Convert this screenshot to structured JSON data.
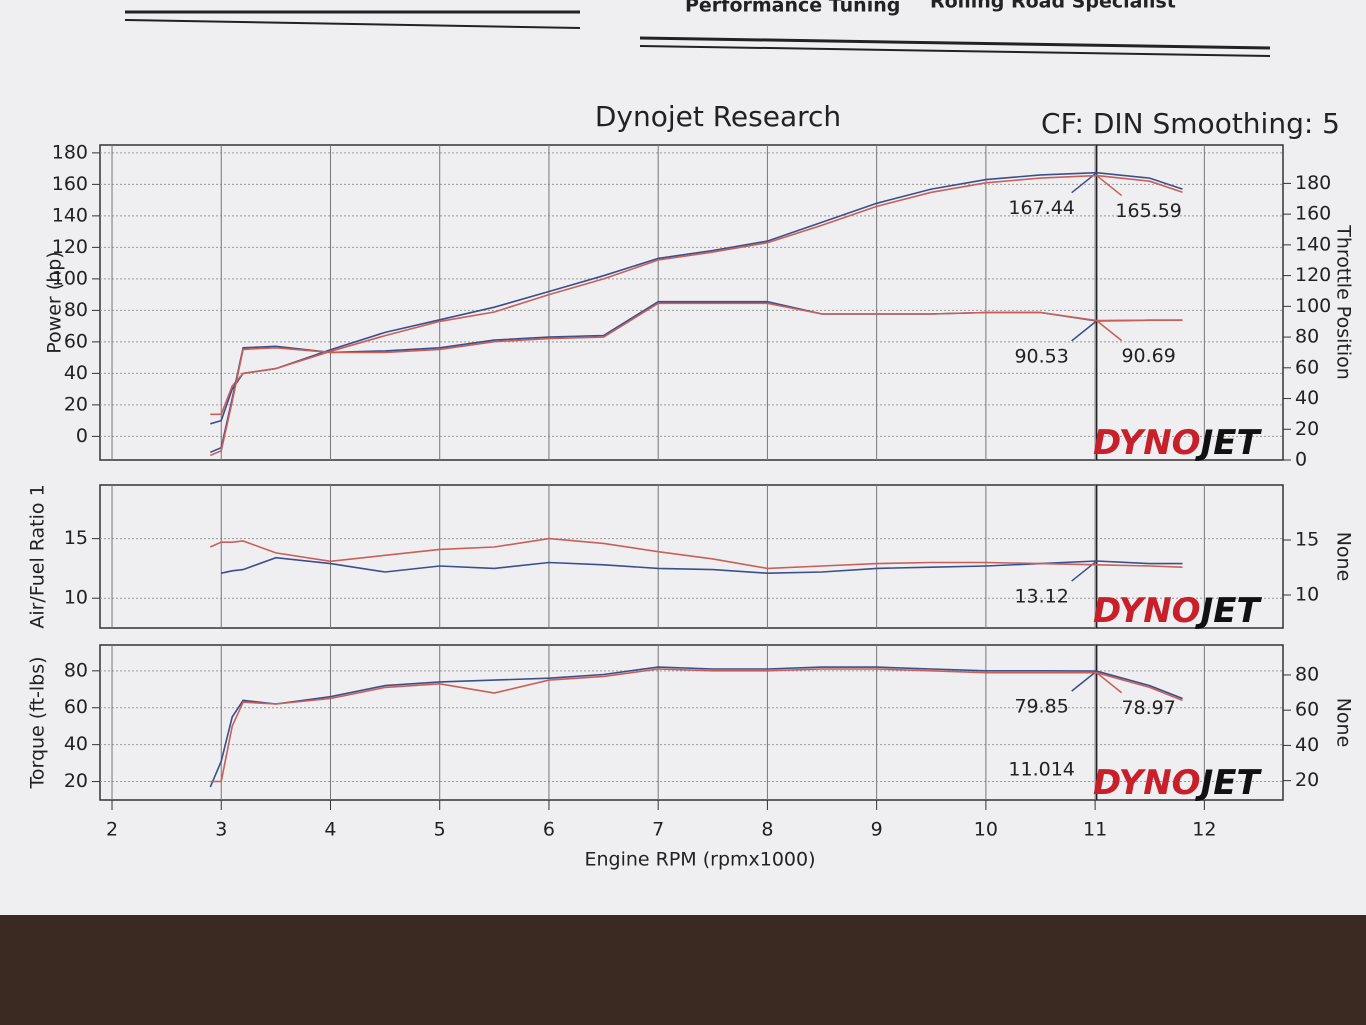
{
  "header": {
    "left": "Performance Tuning",
    "right": "Rolling Road Specialist"
  },
  "logo": [
    "DYNO",
    "JET"
  ],
  "chart_data": [
    {
      "type": "line",
      "title": "Dynojet Research",
      "subtitle": "CF: DIN Smoothing: 5",
      "ylabel": "Power (hp)",
      "y2label": "Throttle Position",
      "ylim": [
        -15,
        185
      ],
      "yticks": [
        0,
        20,
        40,
        60,
        80,
        100,
        120,
        140,
        160,
        180
      ],
      "y2lim": [
        0,
        205
      ],
      "y2ticks": [
        0,
        20,
        40,
        60,
        80,
        100,
        120,
        140,
        160,
        180
      ],
      "grid": true,
      "x": [
        2.9,
        3.0,
        3.1,
        3.2,
        3.5,
        4,
        4.5,
        5,
        5.5,
        6,
        6.5,
        7,
        7.5,
        8,
        8.5,
        9,
        9.5,
        10,
        10.5,
        11.014,
        11.5,
        11.8
      ],
      "series": [
        {
          "color": "#3b4f8c",
          "axis": "y",
          "cursor_label": true,
          "values": [
            8,
            10,
            30,
            40,
            43,
            55,
            66,
            74,
            82,
            92,
            102,
            113,
            118,
            124,
            136,
            148,
            157,
            163,
            166,
            167.44,
            164,
            157
          ]
        },
        {
          "color": "#c8605a",
          "axis": "y",
          "cursor_label": true,
          "values": [
            14,
            14,
            32,
            40,
            43,
            54,
            64,
            73,
            79,
            90,
            100,
            112,
            117,
            123,
            134,
            146,
            155,
            161,
            164,
            165.59,
            162,
            155
          ]
        },
        {
          "color": "#3b4f8c",
          "axis": "y2",
          "cursor_label": true,
          "values": [
            5,
            8,
            40,
            73,
            74,
            70,
            71,
            73,
            78,
            80,
            81,
            103,
            103,
            103,
            95,
            95,
            95,
            96,
            96,
            90.53,
            91,
            91
          ]
        },
        {
          "color": "#c8605a",
          "axis": "y2",
          "cursor_label": true,
          "values": [
            3,
            6,
            38,
            72,
            73,
            70,
            70,
            72,
            77,
            79,
            80,
            102,
            102,
            102,
            95,
            95,
            95,
            96,
            96,
            90.69,
            91,
            91
          ]
        }
      ]
    },
    {
      "type": "line",
      "ylabel": "Air/Fuel Ratio 1",
      "y2label": "None",
      "ylim": [
        7.5,
        19.5
      ],
      "yticks": [
        10,
        15
      ],
      "y2lim": [
        7,
        20
      ],
      "y2ticks": [
        10,
        15
      ],
      "grid": true,
      "x": [
        2.9,
        3.0,
        3.1,
        3.2,
        3.5,
        4,
        4.5,
        5,
        5.5,
        6,
        6.5,
        7,
        7.5,
        8,
        8.5,
        9,
        9.5,
        10,
        10.5,
        11.014,
        11.5,
        11.8
      ],
      "series": [
        {
          "color": "#3b4f8c",
          "axis": "y",
          "cursor_label": true,
          "values": [
            null,
            12.1,
            12.3,
            12.4,
            13.4,
            12.9,
            12.2,
            12.7,
            12.5,
            13.0,
            12.8,
            12.5,
            12.4,
            12.1,
            12.2,
            12.5,
            12.6,
            12.7,
            12.9,
            13.12,
            12.9,
            12.9
          ]
        },
        {
          "color": "#c8605a",
          "axis": "y",
          "cursor_label": false,
          "values": [
            14.3,
            14.7,
            14.7,
            14.8,
            13.8,
            13.1,
            13.6,
            14.1,
            14.3,
            15.0,
            14.6,
            13.9,
            13.3,
            12.5,
            12.7,
            12.9,
            13.0,
            13.0,
            12.9,
            12.8,
            12.7,
            12.6
          ]
        }
      ]
    },
    {
      "type": "line",
      "ylabel": "Torque (ft-lbs)",
      "y2label": "None",
      "xlabel": "Engine RPM (rpmx1000)",
      "xlim": [
        1.89,
        12.72
      ],
      "xticks": [
        2,
        3,
        4,
        5,
        6,
        7,
        8,
        9,
        10,
        11,
        12
      ],
      "ylim": [
        10,
        94
      ],
      "yticks": [
        20,
        40,
        60,
        80
      ],
      "y2lim": [
        9,
        97
      ],
      "y2ticks": [
        20,
        40,
        60,
        80
      ],
      "grid": true,
      "cursor_x": 11.014,
      "x": [
        2.9,
        3.0,
        3.1,
        3.2,
        3.5,
        4,
        4.5,
        5,
        5.5,
        6,
        6.5,
        7,
        7.5,
        8,
        8.5,
        9,
        9.5,
        10,
        10.5,
        11.014,
        11.5,
        11.8
      ],
      "series": [
        {
          "color": "#3b4f8c",
          "axis": "y",
          "cursor_label": true,
          "values": [
            17,
            31,
            55,
            64,
            62,
            66,
            72,
            74,
            75,
            76,
            78,
            82,
            81,
            81,
            82,
            82,
            81,
            80,
            80,
            79.85,
            72,
            65
          ]
        },
        {
          "color": "#c8605a",
          "axis": "y",
          "cursor_label": true,
          "values": [
            20,
            20,
            50,
            63,
            62,
            65,
            71,
            73,
            68,
            75,
            77,
            81,
            80,
            80,
            81,
            81,
            80,
            79,
            79,
            78.97,
            71,
            64
          ]
        }
      ]
    }
  ]
}
